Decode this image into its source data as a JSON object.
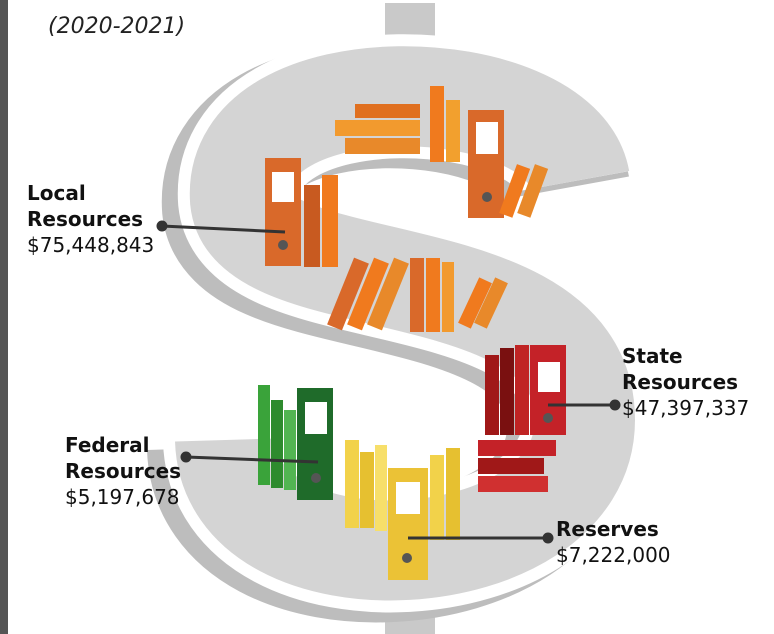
{
  "subtitle": "(2020-2021)",
  "items": [
    {
      "label": "Local Resources",
      "amount": "$75,448,843"
    },
    {
      "label": "State Resources",
      "amount": "$47,397,337"
    },
    {
      "label": "Federal Resources",
      "amount": "$5,197,678"
    },
    {
      "label": "Reserves",
      "amount": "$7,222,000"
    }
  ]
}
